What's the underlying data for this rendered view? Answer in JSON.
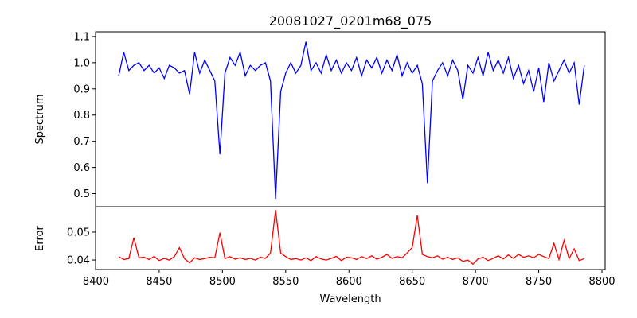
{
  "chart_data": [
    {
      "type": "line",
      "title": "20081027_0201m68_075",
      "xlabel": "",
      "ylabel": "Spectrum",
      "xlim": [
        8399.7,
        8802.5
      ],
      "ylim": [
        0.45,
        1.118
      ],
      "yticks": [
        0.5,
        0.6,
        0.7,
        0.8,
        0.9,
        1.0,
        1.1
      ],
      "ytick_labels": [
        "0.5",
        "0.6",
        "0.7",
        "0.8",
        "0.9",
        "1.0",
        "1.1"
      ],
      "color": "#0000ff",
      "x_start": 8418,
      "x_step": 4,
      "values": [
        0.95,
        1.04,
        0.97,
        0.99,
        1.0,
        0.97,
        0.99,
        0.96,
        0.98,
        0.94,
        0.99,
        0.98,
        0.96,
        0.97,
        0.88,
        1.04,
        0.96,
        1.01,
        0.97,
        0.93,
        0.65,
        0.96,
        1.02,
        0.99,
        1.04,
        0.95,
        0.99,
        0.97,
        0.99,
        1.0,
        0.93,
        0.48,
        0.89,
        0.96,
        1.0,
        0.96,
        0.99,
        1.08,
        0.97,
        1.0,
        0.96,
        1.03,
        0.97,
        1.01,
        0.96,
        1.0,
        0.97,
        1.02,
        0.95,
        1.01,
        0.98,
        1.02,
        0.96,
        1.01,
        0.97,
        1.03,
        0.95,
        1.0,
        0.96,
        0.99,
        0.92,
        0.54,
        0.93,
        0.97,
        1.0,
        0.95,
        1.01,
        0.97,
        0.86,
        0.99,
        0.96,
        1.02,
        0.95,
        1.04,
        0.97,
        1.01,
        0.96,
        1.02,
        0.94,
        0.99,
        0.92,
        0.97,
        0.89,
        0.98,
        0.85,
        1.0,
        0.93,
        0.97,
        1.01,
        0.96,
        1.0,
        0.84,
        0.99
      ]
    },
    {
      "type": "line",
      "xlabel": "Wavelength",
      "ylabel": "Error",
      "xlim": [
        8399.7,
        8802.5
      ],
      "ylim": [
        0.0366,
        0.0591
      ],
      "xticks": [
        8400,
        8450,
        8500,
        8550,
        8600,
        8650,
        8700,
        8750,
        8800
      ],
      "xtick_labels": [
        "8400",
        "8450",
        "8500",
        "8550",
        "8600",
        "8650",
        "8700",
        "8750",
        "8800"
      ],
      "yticks": [
        0.04,
        0.05
      ],
      "ytick_labels": [
        "0.04",
        "0.05"
      ],
      "color": "#ff0000",
      "x_start": 8418,
      "x_step": 4,
      "values": [
        0.0412,
        0.0402,
        0.0405,
        0.048,
        0.0408,
        0.041,
        0.0402,
        0.0413,
        0.0398,
        0.0406,
        0.04,
        0.0412,
        0.0444,
        0.0405,
        0.039,
        0.0408,
        0.0402,
        0.0405,
        0.041,
        0.0408,
        0.0498,
        0.0405,
        0.0412,
        0.0403,
        0.0408,
        0.0402,
        0.0406,
        0.04,
        0.041,
        0.0406,
        0.0425,
        0.058,
        0.0425,
        0.0412,
        0.0402,
        0.0405,
        0.04,
        0.0408,
        0.0398,
        0.0412,
        0.0404,
        0.04,
        0.0406,
        0.0413,
        0.0398,
        0.041,
        0.0408,
        0.0402,
        0.0412,
        0.0405,
        0.0415,
        0.0403,
        0.041,
        0.042,
        0.0406,
        0.0412,
        0.0408,
        0.0425,
        0.0445,
        0.056,
        0.042,
        0.0412,
        0.0408,
        0.0415,
        0.0403,
        0.041,
        0.0402,
        0.0408,
        0.0395,
        0.04,
        0.0385,
        0.0404,
        0.041,
        0.0398,
        0.0406,
        0.0415,
        0.0404,
        0.0418,
        0.0406,
        0.042,
        0.041,
        0.0415,
        0.0408,
        0.042,
        0.0412,
        0.0405,
        0.046,
        0.0402,
        0.047,
        0.0405,
        0.044,
        0.0398,
        0.0405
      ]
    }
  ]
}
